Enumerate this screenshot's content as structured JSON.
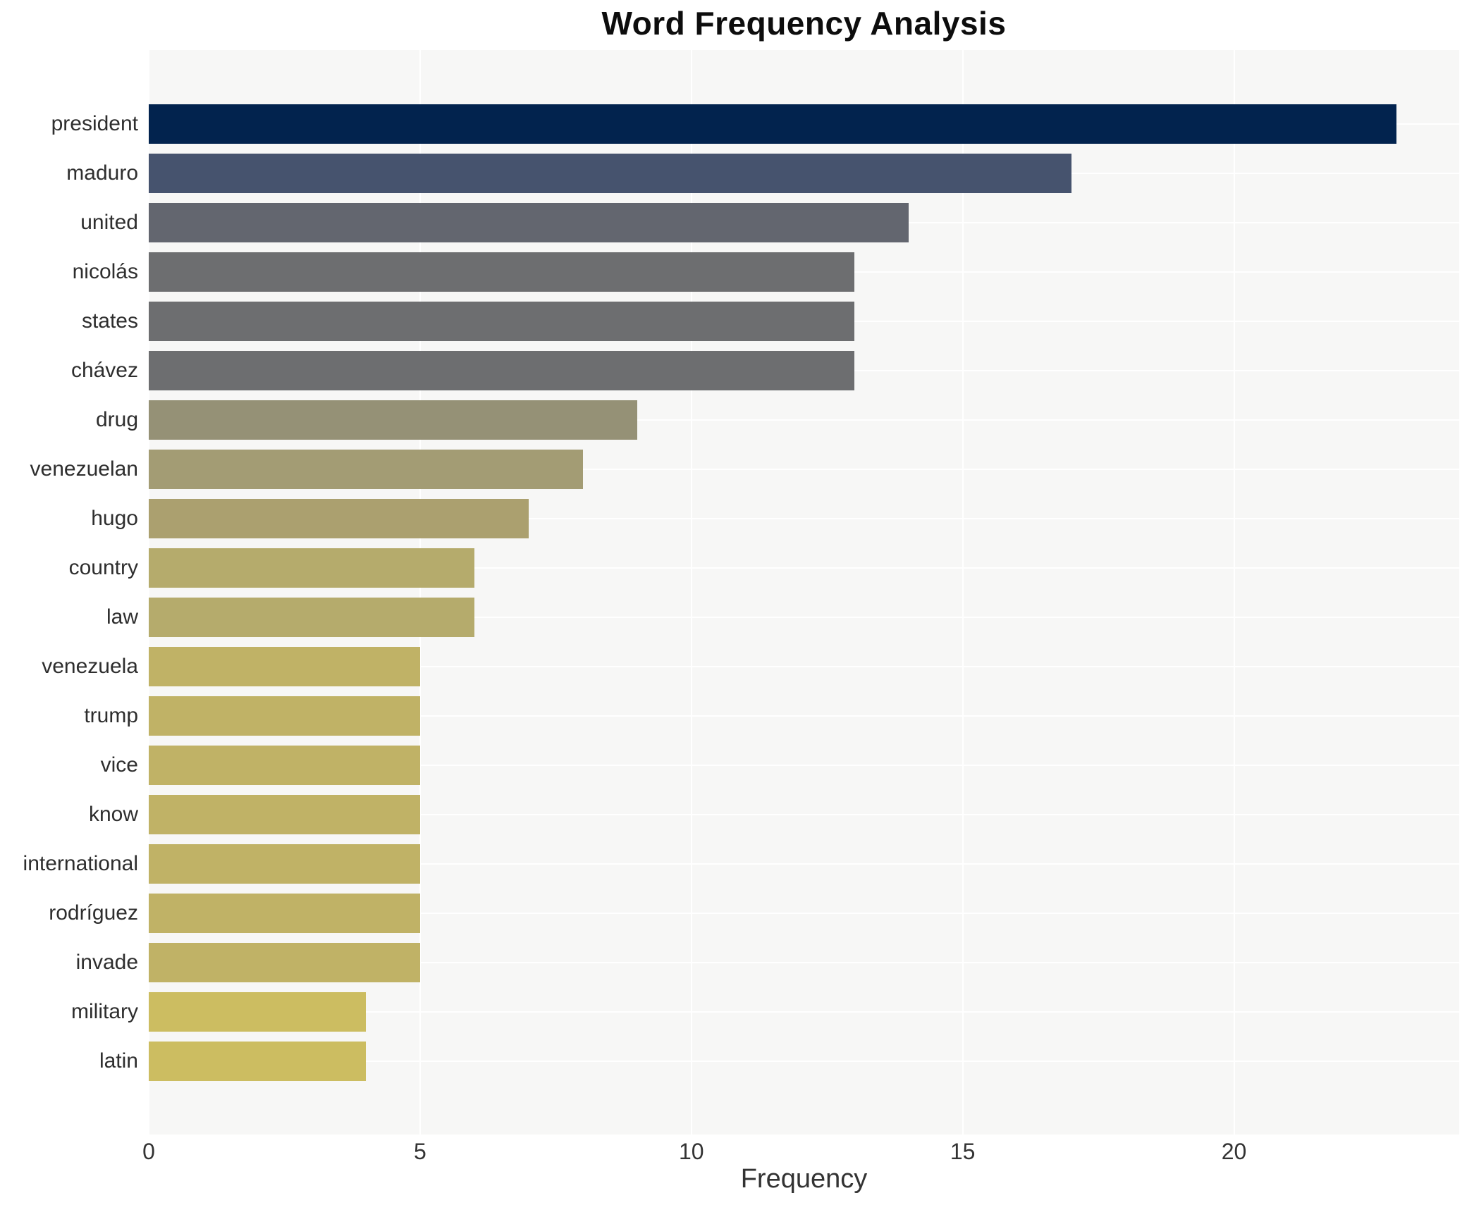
{
  "title": "Word Frequency Analysis",
  "chart_data": {
    "type": "bar",
    "orientation": "horizontal",
    "title": "Word Frequency Analysis",
    "xlabel": "Frequency",
    "ylabel": "",
    "xlim": [
      0,
      24.15
    ],
    "xticks": [
      0,
      5,
      10,
      15,
      20
    ],
    "grid": true,
    "legend": false,
    "plot_background": "#f7f7f6",
    "grid_color": "#ffffff",
    "categories": [
      "president",
      "maduro",
      "united",
      "nicolás",
      "states",
      "chávez",
      "drug",
      "venezuelan",
      "hugo",
      "country",
      "law",
      "venezuela",
      "trump",
      "vice",
      "know",
      "international",
      "rodríguez",
      "invade",
      "military",
      "latin"
    ],
    "values": [
      23,
      17,
      14,
      13,
      13,
      13,
      9,
      8,
      7,
      6,
      6,
      5,
      5,
      5,
      5,
      5,
      5,
      5,
      4,
      4
    ],
    "bar_colors": [
      "#02234e",
      "#46536e",
      "#63666f",
      "#6d6e70",
      "#6d6e70",
      "#6d6e70",
      "#959176",
      "#a39c74",
      "#aba06f",
      "#b5ab6c",
      "#b5ab6c",
      "#c0b266",
      "#c0b266",
      "#c0b266",
      "#c0b266",
      "#c0b266",
      "#c0b266",
      "#c0b266",
      "#ccbd61",
      "#ccbd61"
    ]
  }
}
